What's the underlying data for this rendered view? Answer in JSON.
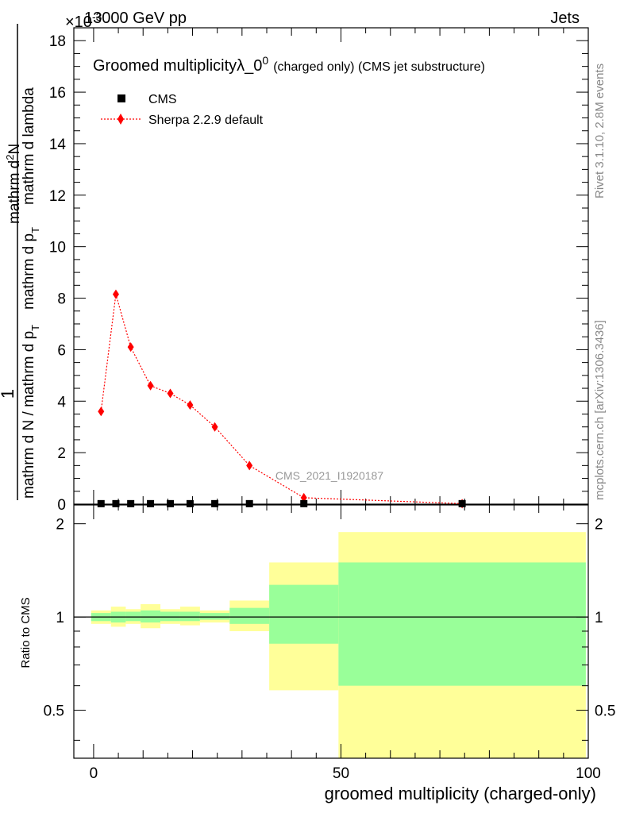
{
  "header": {
    "left": "13000 GeV pp",
    "right": "Jets",
    "exponent": "×10",
    "exponent_power": "-3"
  },
  "side_labels": {
    "rivet": "Rivet 3.1.10,  2.8M events",
    "mcplots": "mcplots.cern.ch [arXiv:1306.3436]"
  },
  "colors": {
    "sherpa": "#ff0000",
    "cms": "#000000",
    "band_inner": "#99ff99",
    "band_outer": "#ffff99"
  },
  "chart_data": [
    {
      "type": "line",
      "title": "Groomed multiplicity",
      "title_symbol": "λ_0",
      "title_sup": "0",
      "title_suffix": "(charged only) (CMS jet substructure)",
      "ylabel_parts": {
        "one": "1",
        "dn": "mathrm d N / mathrm d p",
        "dn_sub": "T",
        "lambda": "mathrm d lambda",
        "dndpt": "mathrm d p",
        "dndpt_sub": "T",
        "mathrmdn": "mathrm d",
        "mathrmdn_sup": "2",
        "N": "N"
      },
      "ylim": [
        0,
        18.5
      ],
      "xlim": [
        -4,
        100
      ],
      "yticks": [
        0,
        2,
        4,
        6,
        8,
        10,
        12,
        14,
        16,
        18
      ],
      "yticklabels": [
        "0",
        "2",
        "4",
        "6",
        "8",
        "10",
        "12",
        "14",
        "16",
        "18"
      ],
      "watermark": "CMS_2021_I1920187",
      "legend": [
        "CMS",
        "Sherpa 2.2.9 default"
      ],
      "series": [
        {
          "name": "CMS",
          "x": [
            1.5,
            4.5,
            7.5,
            11.5,
            15.5,
            19.5,
            24.5,
            31.5,
            42.5,
            74.5
          ],
          "values": [
            0.02,
            0.02,
            0.02,
            0.02,
            0.02,
            0.02,
            0.02,
            0.02,
            0.02,
            0.02
          ]
        },
        {
          "name": "Sherpa 2.2.9 default",
          "x": [
            1.5,
            4.5,
            7.5,
            11.5,
            15.5,
            19.5,
            24.5,
            31.5,
            42.5,
            74.5
          ],
          "values": [
            3.6,
            8.15,
            6.1,
            4.6,
            4.3,
            3.85,
            3.0,
            1.5,
            0.25,
            0.02
          ]
        }
      ]
    },
    {
      "type": "area",
      "ylabel": "Ratio to CMS",
      "xlabel": "groomed multiplicity (charged-only)",
      "ylim": [
        0.35,
        2.3
      ],
      "xlim": [
        -4,
        100
      ],
      "xticks": [
        0,
        50,
        100
      ],
      "xticklabels": [
        "0",
        "50",
        "100"
      ],
      "yticks": [
        0.5,
        1,
        2
      ],
      "yticklabels": [
        "0.5",
        "1",
        "2"
      ],
      "bins": [
        {
          "lo": -0.5,
          "hi": 3.5,
          "inner": [
            0.97,
            1.03
          ],
          "outer": [
            0.95,
            1.05
          ]
        },
        {
          "lo": 3.5,
          "hi": 6.5,
          "inner": [
            0.96,
            1.04
          ],
          "outer": [
            0.93,
            1.08
          ]
        },
        {
          "lo": 6.5,
          "hi": 9.5,
          "inner": [
            0.97,
            1.04
          ],
          "outer": [
            0.95,
            1.06
          ]
        },
        {
          "lo": 9.5,
          "hi": 13.5,
          "inner": [
            0.96,
            1.05
          ],
          "outer": [
            0.92,
            1.1
          ]
        },
        {
          "lo": 13.5,
          "hi": 17.5,
          "inner": [
            0.97,
            1.04
          ],
          "outer": [
            0.95,
            1.06
          ]
        },
        {
          "lo": 17.5,
          "hi": 21.5,
          "inner": [
            0.97,
            1.04
          ],
          "outer": [
            0.94,
            1.08
          ]
        },
        {
          "lo": 21.5,
          "hi": 27.5,
          "inner": [
            0.98,
            1.03
          ],
          "outer": [
            0.96,
            1.05
          ]
        },
        {
          "lo": 27.5,
          "hi": 35.5,
          "inner": [
            0.95,
            1.07
          ],
          "outer": [
            0.9,
            1.13
          ]
        },
        {
          "lo": 35.5,
          "hi": 49.5,
          "inner": [
            0.82,
            1.27
          ],
          "outer": [
            0.58,
            1.5
          ]
        },
        {
          "lo": 49.5,
          "hi": 99.5,
          "inner": [
            0.6,
            1.5
          ],
          "outer": [
            0.35,
            1.88
          ]
        }
      ]
    }
  ]
}
